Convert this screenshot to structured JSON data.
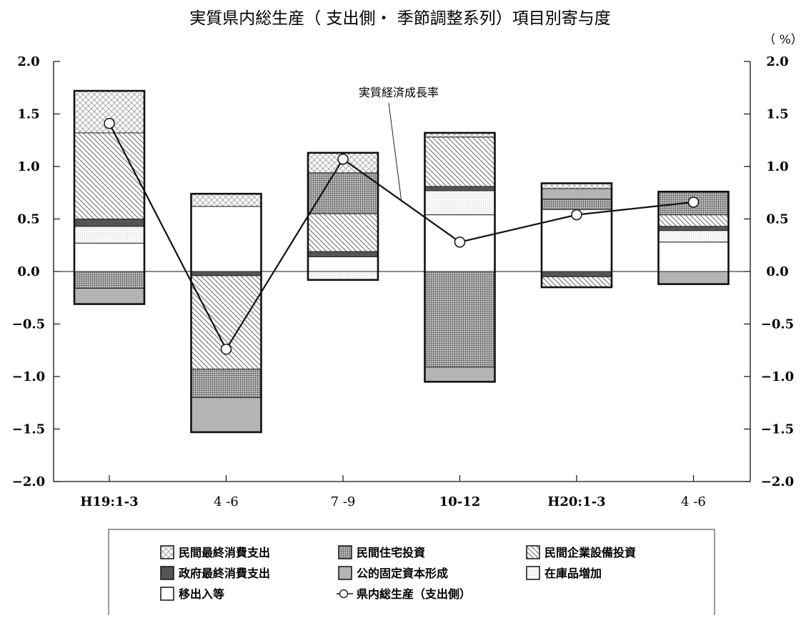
{
  "chart_data": {
    "type": "bar",
    "title": "実質県内総生産（ 支出側・ 季節調整系列）項目別寄与度",
    "unit_label": "（ %）",
    "categories": [
      "H19:1-3",
      "4 -6",
      "7 -9",
      "10-12",
      "H20:1-3",
      "4 -6"
    ],
    "category_bold": [
      true,
      false,
      false,
      true,
      true,
      false
    ],
    "ylim": [
      -2.0,
      2.0
    ],
    "yticks": [
      "2.0",
      "1.5",
      "1.0",
      "0.5",
      "0.0",
      "−0.5",
      "−1.0",
      "−1.5",
      "−2.0"
    ],
    "stacked": true,
    "series": [
      {
        "key": "net_export",
        "name": "移出入等",
        "pattern": "white",
        "values": [
          0.27,
          0.62,
          0.14,
          0.54,
          0.59,
          0.28
        ]
      },
      {
        "key": "inventory",
        "name": "在庫品増加",
        "pattern": "dots",
        "values": [
          0.16,
          0.0,
          -0.08,
          0.23,
          0.0,
          0.11
        ]
      },
      {
        "key": "gov_consumption",
        "name": "政府最終消費支出",
        "pattern": "dark",
        "values": [
          0.07,
          -0.04,
          0.05,
          0.04,
          -0.05,
          0.04
        ]
      },
      {
        "key": "private_capex",
        "name": "民間企業設備投資",
        "pattern": "diag",
        "values": [
          0.82,
          -0.89,
          0.36,
          0.47,
          -0.1,
          0.11
        ]
      },
      {
        "key": "private_housing",
        "name": "民間住宅投資",
        "pattern": "grid",
        "values": [
          -0.16,
          -0.27,
          0.39,
          -0.91,
          0.1,
          0.22
        ]
      },
      {
        "key": "public_capital",
        "name": "公的固定資本形成",
        "pattern": "gray",
        "values": [
          -0.15,
          -0.33,
          0.0,
          -0.14,
          0.1,
          -0.12
        ]
      },
      {
        "key": "private_consumption",
        "name": "民間最終消費支出",
        "pattern": "cross",
        "values": [
          0.4,
          0.12,
          0.19,
          0.04,
          0.05,
          0.0
        ]
      }
    ],
    "line_series": {
      "name": "県内総生産（支出側）",
      "values": [
        1.41,
        -0.74,
        1.07,
        0.28,
        0.54,
        0.66
      ]
    },
    "annotation": "実質経済成長率",
    "grid": false,
    "legend_position": "bottom",
    "legend_order": [
      "private_consumption",
      "private_housing",
      "private_capex",
      "gov_consumption",
      "public_capital",
      "inventory",
      "net_export",
      "line"
    ]
  }
}
